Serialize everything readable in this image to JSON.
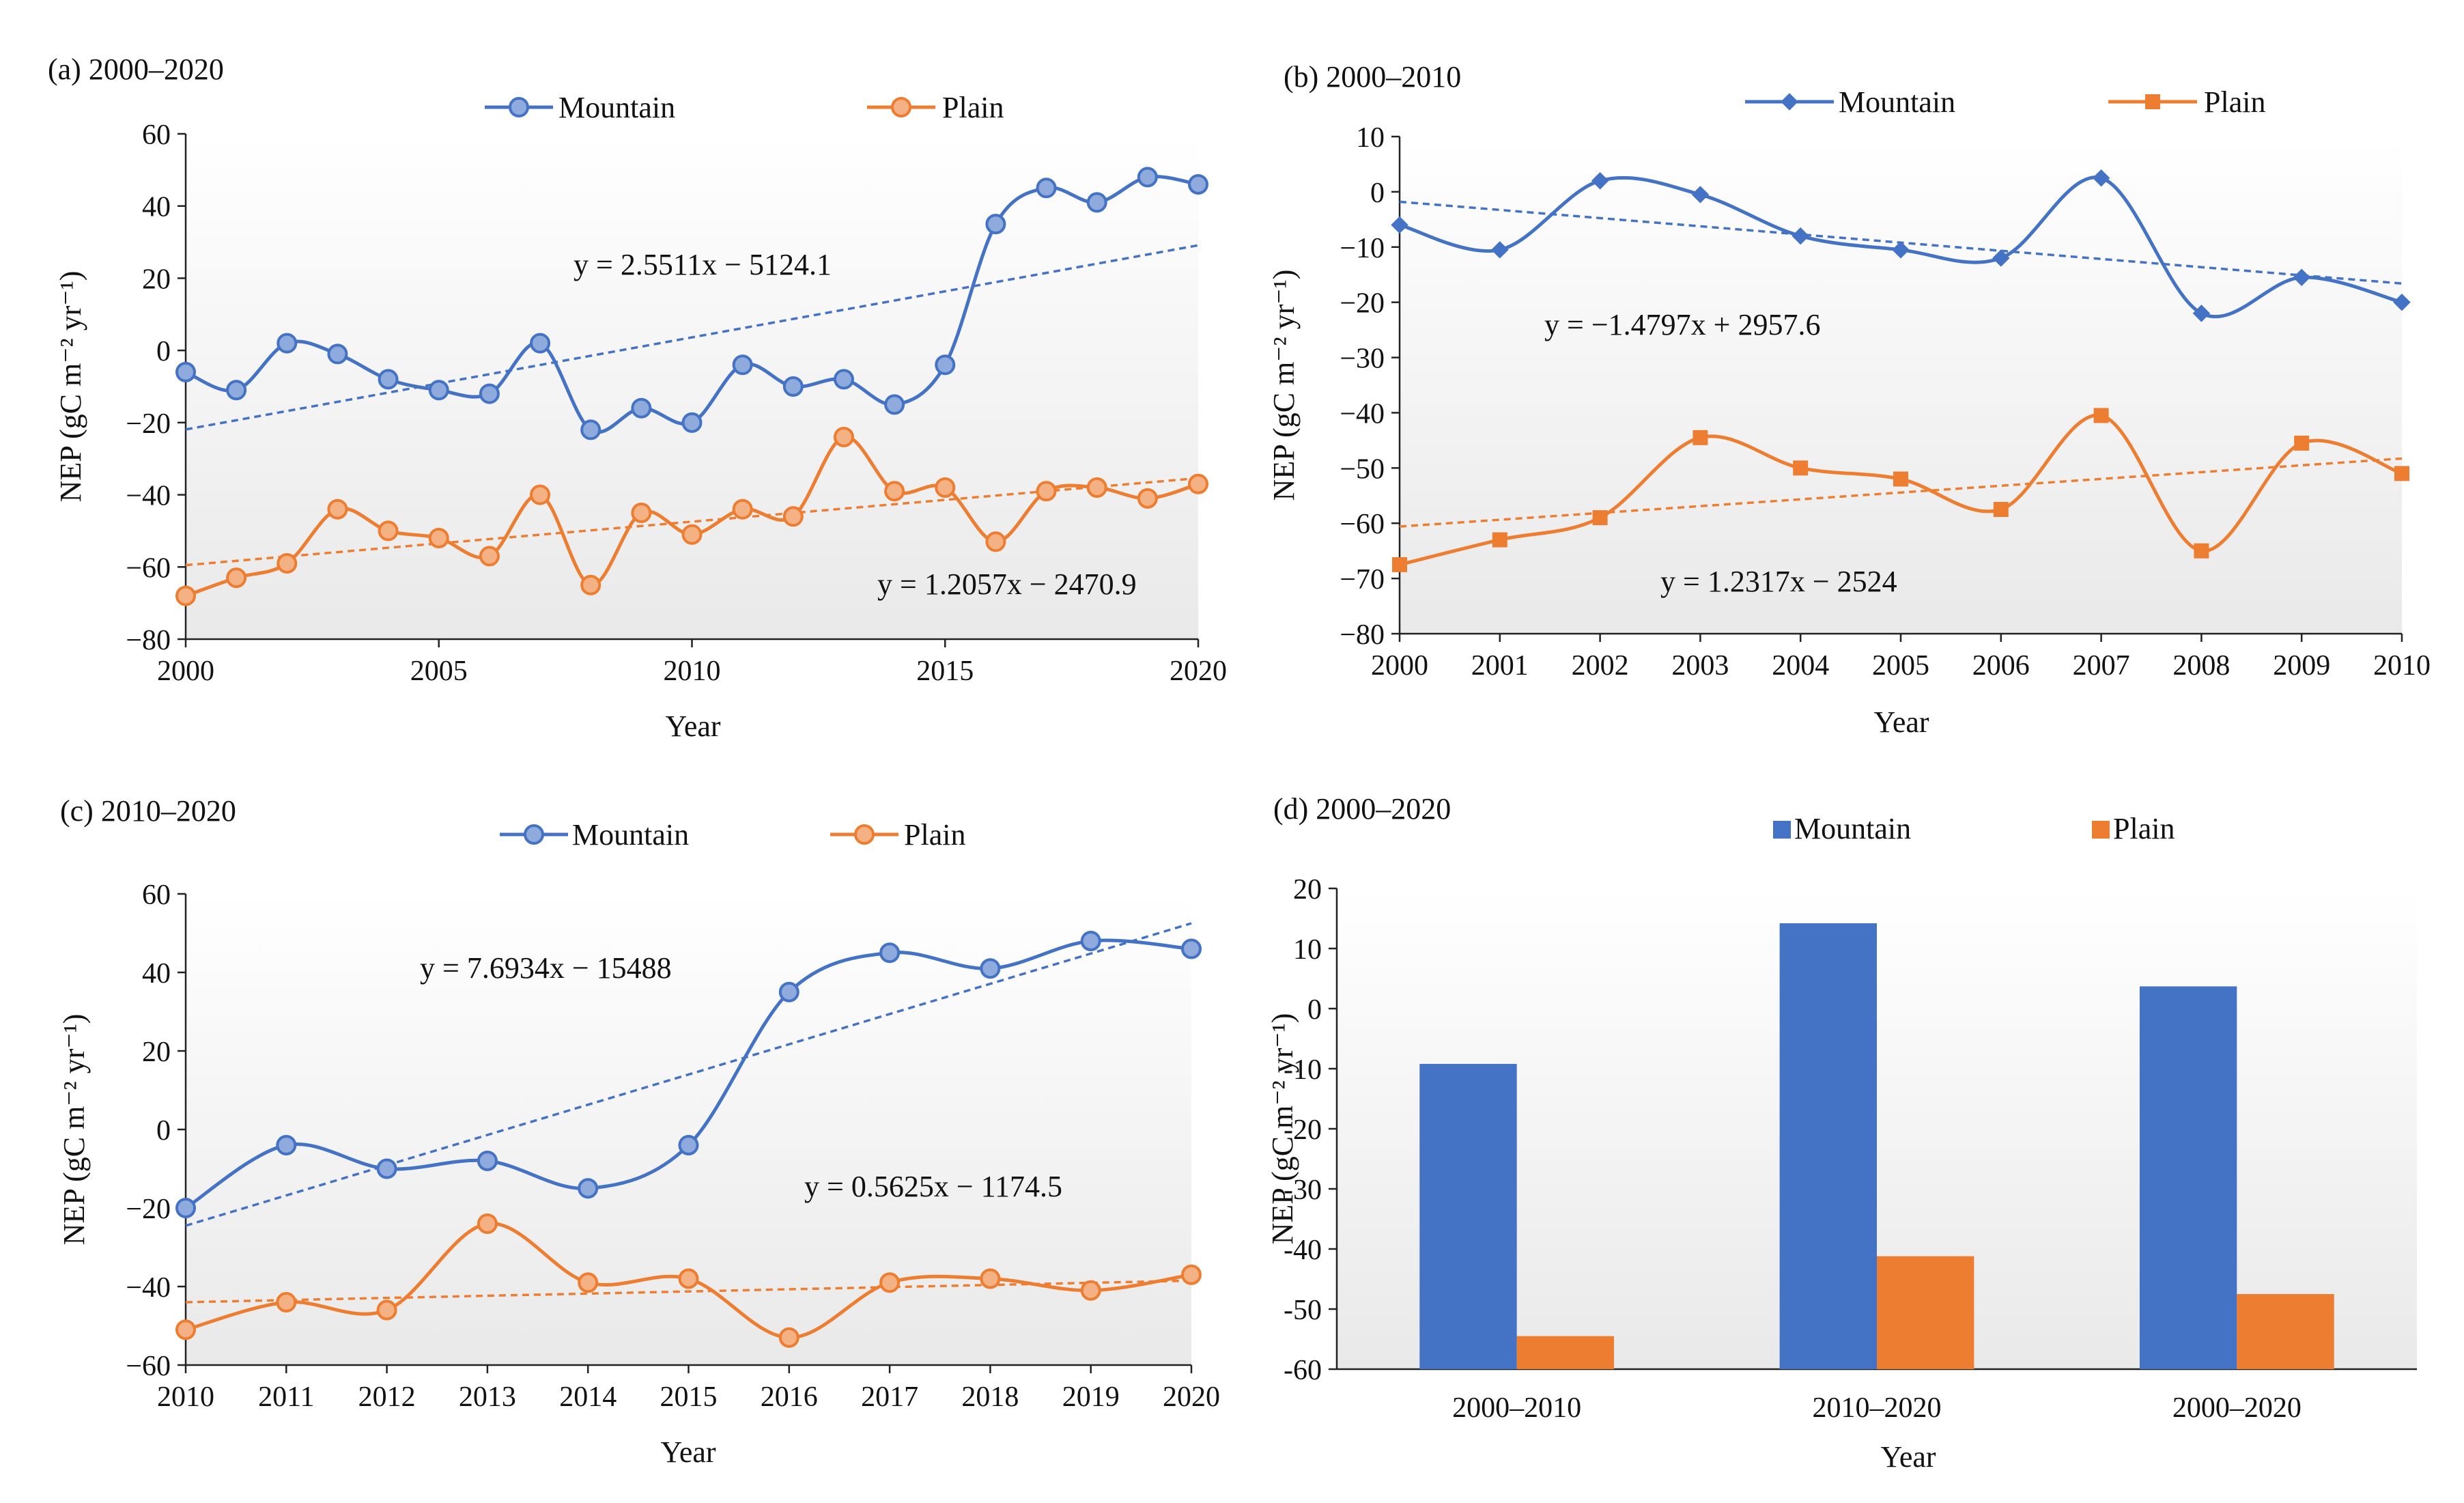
{
  "colors": {
    "mountain": "#4472C4",
    "plain": "#ED7D31",
    "axis": "#222222"
  },
  "chart_data": [
    {
      "id": "a",
      "type": "line",
      "panel_label": "(a) 2000–2020",
      "xlabel": "Year",
      "ylabel": "NEP (gC m⁻² yr⁻¹)",
      "xlim": [
        2000,
        2020
      ],
      "ylim": [
        -80,
        60
      ],
      "xticks": [
        2000,
        2005,
        2010,
        2015,
        2020
      ],
      "xtick_labels": [
        "2000",
        "2005",
        "2010",
        "2015",
        "2020"
      ],
      "yticks": [
        -80,
        -60,
        -40,
        -20,
        0,
        20,
        40,
        60
      ],
      "ytick_labels": [
        "−80",
        "−60",
        "−40",
        "−20",
        "0",
        "20",
        "40",
        "60"
      ],
      "marker": "circle",
      "x": [
        2000,
        2001,
        2002,
        2003,
        2004,
        2005,
        2006,
        2007,
        2008,
        2009,
        2010,
        2011,
        2012,
        2013,
        2014,
        2015,
        2016,
        2017,
        2018,
        2019,
        2020
      ],
      "series": [
        {
          "name": "Mountain",
          "color_key": "mountain",
          "values": [
            -6,
            -11,
            2,
            -1,
            -8,
            -11,
            -12,
            2,
            -22,
            -16,
            -20,
            -4,
            -10,
            -8,
            -15,
            -4,
            35,
            45,
            41,
            48,
            46
          ],
          "trend": {
            "slope": 2.5511,
            "intercept": -5124.1,
            "label": "y = 2.5511x − 5124.1"
          }
        },
        {
          "name": "Plain",
          "color_key": "plain",
          "values": [
            -68,
            -63,
            -59,
            -44,
            -50,
            -52,
            -57,
            -40,
            -65,
            -45,
            -51,
            -44,
            -46,
            -24,
            -39,
            -38,
            -53,
            -39,
            -38,
            -41,
            -37
          ],
          "trend": {
            "slope": 1.2057,
            "intercept": -2470.9,
            "label": "y = 1.2057x − 2470.9"
          }
        }
      ]
    },
    {
      "id": "b",
      "type": "line",
      "panel_label": "(b) 2000–2010",
      "xlabel": "Year",
      "ylabel": "NEP (gC m⁻² yr⁻¹)",
      "xlim": [
        2000,
        2010
      ],
      "ylim": [
        -80,
        10
      ],
      "xticks": [
        2000,
        2001,
        2002,
        2003,
        2004,
        2005,
        2006,
        2007,
        2008,
        2009,
        2010
      ],
      "xtick_labels": [
        "2000",
        "2001",
        "2002",
        "2003",
        "2004",
        "2005",
        "2006",
        "2007",
        "2008",
        "2009",
        "2010"
      ],
      "yticks": [
        -80,
        -70,
        -60,
        -50,
        -40,
        -30,
        -20,
        -10,
        0,
        10
      ],
      "ytick_labels": [
        "−80",
        "−70",
        "−60",
        "−50",
        "−40",
        "−30",
        "−20",
        "−10",
        "0",
        "10"
      ],
      "markers": {
        "Mountain": "diamond",
        "Plain": "square"
      },
      "x": [
        2000,
        2001,
        2002,
        2003,
        2004,
        2005,
        2006,
        2007,
        2008,
        2009,
        2010
      ],
      "series": [
        {
          "name": "Mountain",
          "color_key": "mountain",
          "values": [
            -6,
            -10.5,
            2,
            -0.5,
            -8,
            -10.5,
            -12,
            2.5,
            -22,
            -15.5,
            -20
          ],
          "trend": {
            "slope": -1.4797,
            "intercept": 2957.6,
            "label": "y = −1.4797x + 2957.6"
          }
        },
        {
          "name": "Plain",
          "color_key": "plain",
          "values": [
            -67.5,
            -63,
            -59,
            -44.5,
            -50,
            -52,
            -57.5,
            -40.5,
            -65,
            -45.5,
            -51
          ],
          "trend": {
            "slope": 1.2317,
            "intercept": -2524,
            "label": "y = 1.2317x − 2524"
          }
        }
      ]
    },
    {
      "id": "c",
      "type": "line",
      "panel_label": "(c) 2010–2020",
      "xlabel": "Year",
      "ylabel": "NEP (gC m⁻² yr⁻¹)",
      "xlim": [
        2010,
        2020
      ],
      "ylim": [
        -60,
        60
      ],
      "xticks": [
        2010,
        2011,
        2012,
        2013,
        2014,
        2015,
        2016,
        2017,
        2018,
        2019,
        2020
      ],
      "xtick_labels": [
        "2010",
        "2011",
        "2012",
        "2013",
        "2014",
        "2015",
        "2016",
        "2017",
        "2018",
        "2019",
        "2020"
      ],
      "yticks": [
        -60,
        -40,
        -20,
        0,
        20,
        40,
        60
      ],
      "ytick_labels": [
        "−60",
        "−40",
        "−20",
        "0",
        "20",
        "40",
        "60"
      ],
      "marker": "circle",
      "x": [
        2010,
        2011,
        2012,
        2013,
        2014,
        2015,
        2016,
        2017,
        2018,
        2019,
        2020
      ],
      "series": [
        {
          "name": "Mountain",
          "color_key": "mountain",
          "values": [
            -20,
            -4,
            -10,
            -8,
            -15,
            -4,
            35,
            45,
            41,
            48,
            46
          ],
          "trend": {
            "from": [
              2010,
              -24.5
            ],
            "to": [
              2020,
              52.5
            ],
            "label": "y = 7.6934x − 15488"
          }
        },
        {
          "name": "Plain",
          "color_key": "plain",
          "values": [
            -51,
            -44,
            -46,
            -24,
            -39,
            -38,
            -53,
            -39,
            -38,
            -41,
            -37
          ],
          "trend": {
            "from": [
              2010,
              -44
            ],
            "to": [
              2020,
              -38.5
            ],
            "label": "y = 0.5625x − 1174.5"
          }
        }
      ]
    },
    {
      "id": "d",
      "type": "bar",
      "panel_label": "(d) 2000–2020",
      "xlabel": "Year",
      "ylabel": "NEP (gC m⁻² yr⁻¹)",
      "ylim": [
        -60,
        20
      ],
      "yticks": [
        -60,
        -50,
        -40,
        -30,
        -20,
        -10,
        0,
        10,
        20
      ],
      "ytick_labels": [
        "-60",
        "-50",
        "-40",
        "-30",
        "-20",
        "-10",
        "0",
        "10",
        "20"
      ],
      "categories": [
        "2000–2010",
        "2010–2020",
        "2000–2020"
      ],
      "series": [
        {
          "name": "Mountain",
          "color_key": "mountain",
          "values": [
            -9.2,
            14.2,
            3.7
          ]
        },
        {
          "name": "Plain",
          "color_key": "plain",
          "values": [
            -54.5,
            -41.2,
            -47.5
          ]
        }
      ]
    }
  ]
}
